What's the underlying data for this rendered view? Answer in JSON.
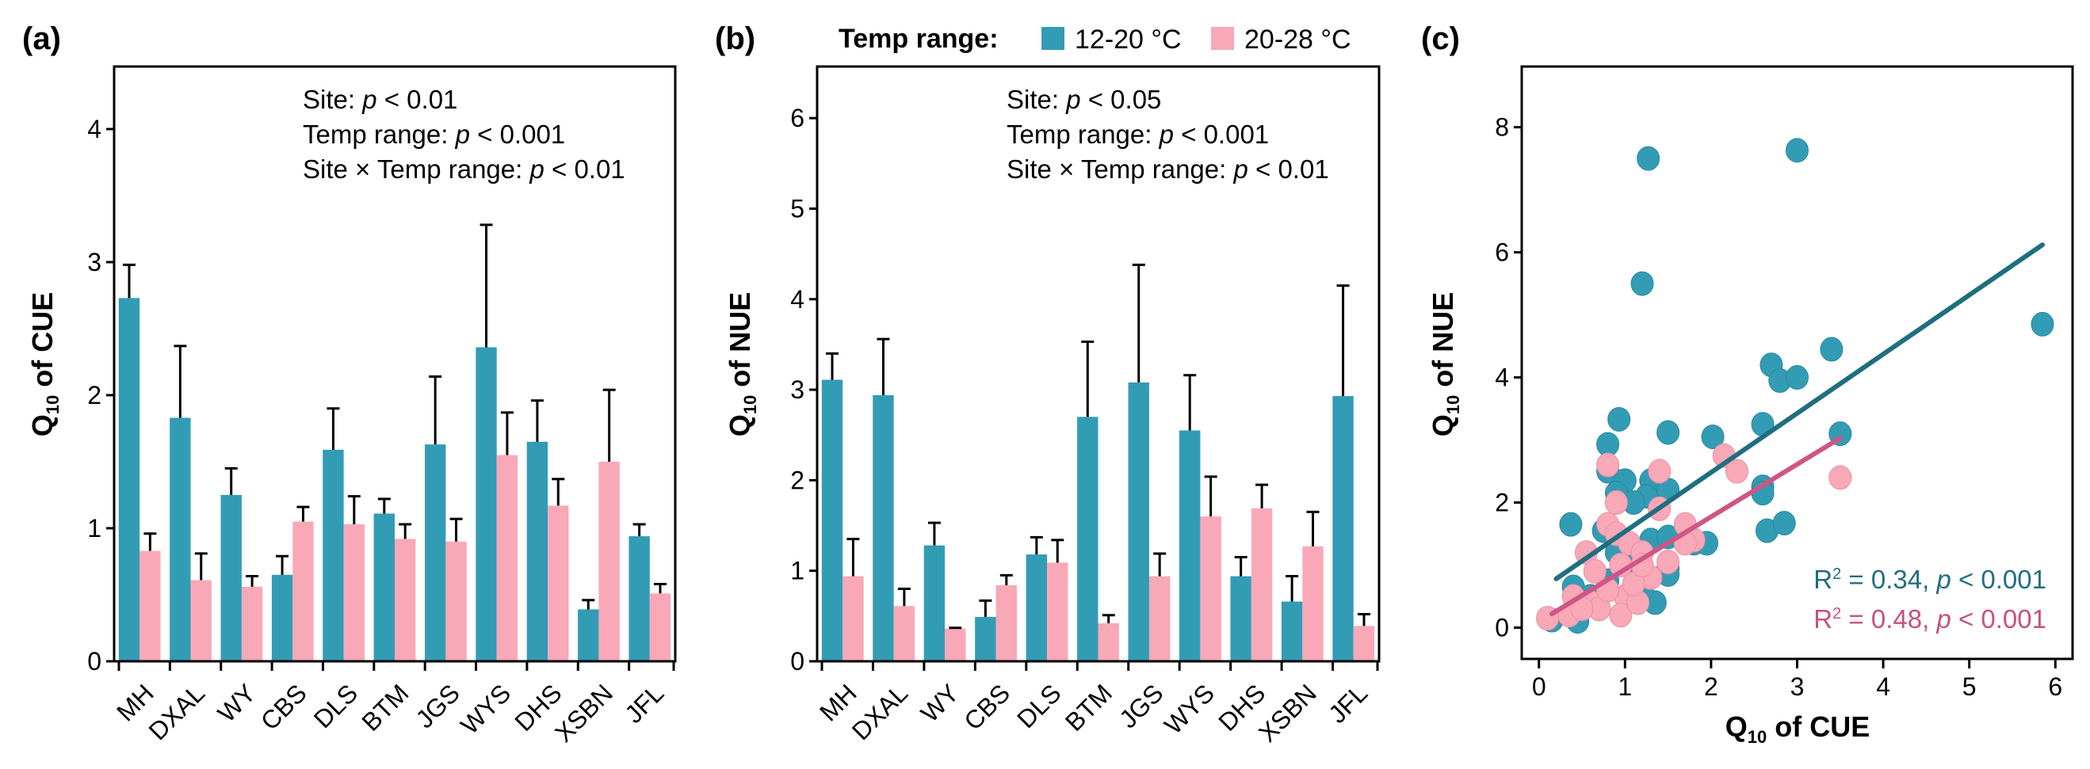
{
  "figure": {
    "panel_labels": [
      "(a)",
      "(b)",
      "(c)"
    ],
    "legend": {
      "title": "Temp range:",
      "items": [
        {
          "label": "12-20 °C",
          "color": "#339cb5"
        },
        {
          "label": "20-28 °C",
          "color": "#f9a8b8"
        }
      ]
    }
  },
  "chart_data": [
    {
      "id": "a",
      "type": "bar",
      "title": "",
      "xlabel": "",
      "ylabel": "Q10 of CUE",
      "ylabel_main": "Q",
      "ylabel_sub": "10",
      "ylabel_rest": " of CUE",
      "ylim": [
        0,
        4.47
      ],
      "yticks": [
        0,
        1,
        2,
        3,
        4
      ],
      "grid": false,
      "categories": [
        "MH",
        "DXAL",
        "WY",
        "CBS",
        "DLS",
        "BTM",
        "JGS",
        "WYS",
        "DHS",
        "XSBN",
        "JFL"
      ],
      "series": [
        {
          "name": "12-20 °C",
          "color": "#339cb5",
          "values": [
            2.73,
            1.83,
            1.25,
            0.65,
            1.59,
            1.11,
            1.63,
            2.36,
            1.65,
            0.39,
            0.94
          ],
          "error_upper": [
            2.98,
            2.37,
            1.45,
            0.79,
            1.9,
            1.22,
            2.14,
            3.28,
            1.96,
            0.46,
            1.03
          ]
        },
        {
          "name": "20-28 °C",
          "color": "#f9a8b8",
          "values": [
            0.83,
            0.61,
            0.56,
            1.05,
            1.03,
            0.92,
            0.9,
            1.55,
            1.17,
            1.5,
            0.51
          ],
          "error_upper": [
            0.96,
            0.81,
            0.64,
            1.16,
            1.24,
            1.03,
            1.07,
            1.87,
            1.37,
            2.04,
            0.58
          ]
        }
      ],
      "annotations": [
        {
          "prefix": "Site: ",
          "italic": "p",
          "suffix": " < 0.01"
        },
        {
          "prefix": "Temp range: ",
          "italic": "p",
          "suffix": " < 0.001"
        },
        {
          "prefix": "Site × Temp range: ",
          "italic": "p",
          "suffix": " < 0.01"
        }
      ]
    },
    {
      "id": "b",
      "type": "bar",
      "title": "",
      "xlabel": "",
      "ylabel": "Q10 of NUE",
      "ylabel_main": "Q",
      "ylabel_sub": "10",
      "ylabel_rest": " of NUE",
      "ylim": [
        0,
        6.57
      ],
      "yticks": [
        0,
        1,
        2,
        3,
        4,
        5,
        6
      ],
      "grid": false,
      "categories": [
        "MH",
        "DXAL",
        "WY",
        "CBS",
        "DLS",
        "BTM",
        "JGS",
        "WYS",
        "DHS",
        "XSBN",
        "JFL"
      ],
      "series": [
        {
          "name": "12-20 °C",
          "color": "#339cb5",
          "values": [
            3.11,
            2.94,
            1.28,
            0.49,
            1.18,
            2.7,
            3.08,
            2.55,
            0.94,
            0.66,
            2.93
          ],
          "error_upper": [
            3.4,
            3.56,
            1.53,
            0.67,
            1.37,
            3.53,
            4.38,
            3.16,
            1.15,
            0.94,
            4.15
          ]
        },
        {
          "name": "20-28 °C",
          "color": "#f9a8b8",
          "values": [
            0.94,
            0.61,
            0.36,
            0.84,
            1.09,
            0.42,
            0.94,
            1.6,
            1.69,
            1.27,
            0.39
          ],
          "error_upper": [
            1.35,
            0.8,
            0.37,
            0.95,
            1.34,
            0.51,
            1.19,
            2.04,
            1.95,
            1.65,
            0.52
          ]
        }
      ],
      "annotations": [
        {
          "prefix": "Site: ",
          "italic": "p",
          "suffix": " < 0.05"
        },
        {
          "prefix": "Temp range: ",
          "italic": "p",
          "suffix": " < 0.001"
        },
        {
          "prefix": "Site × Temp range: ",
          "italic": "p",
          "suffix": " < 0.01"
        }
      ]
    },
    {
      "id": "c",
      "type": "scatter",
      "title": "",
      "xlabel": "Q10 of CUE",
      "xlabel_main": "Q",
      "xlabel_sub": "10",
      "xlabel_rest": " of CUE",
      "ylabel": "Q10 of NUE",
      "ylabel_main": "Q",
      "ylabel_sub": "10",
      "ylabel_rest": " of NUE",
      "xlim": [
        -0.2,
        6.2
      ],
      "ylim": [
        -0.5,
        8.97
      ],
      "xticks": [
        0,
        1,
        2,
        3,
        4,
        5,
        6
      ],
      "yticks": [
        0,
        2,
        4,
        6,
        8
      ],
      "grid": false,
      "series": [
        {
          "name": "12-20 °C",
          "color": "#339cb5",
          "line_color": "#1f6e80",
          "points": [
            [
              1.27,
              7.5
            ],
            [
              3.0,
              7.63
            ],
            [
              1.2,
              5.5
            ],
            [
              5.85,
              4.85
            ],
            [
              3.4,
              4.45
            ],
            [
              2.7,
              4.2
            ],
            [
              2.8,
              3.95
            ],
            [
              3.0,
              4.0
            ],
            [
              0.93,
              3.33
            ],
            [
              1.5,
              3.12
            ],
            [
              2.02,
              3.05
            ],
            [
              2.6,
              3.25
            ],
            [
              3.5,
              3.1
            ],
            [
              0.8,
              2.93
            ],
            [
              0.8,
              2.5
            ],
            [
              1.0,
              2.35
            ],
            [
              1.3,
              2.35
            ],
            [
              1.5,
              2.2
            ],
            [
              1.25,
              2.1
            ],
            [
              1.1,
              2.0
            ],
            [
              0.9,
              2.15
            ],
            [
              2.6,
              2.25
            ],
            [
              2.6,
              2.15
            ],
            [
              0.37,
              1.65
            ],
            [
              2.65,
              1.55
            ],
            [
              2.85,
              1.67
            ],
            [
              0.75,
              1.55
            ],
            [
              1.3,
              1.4
            ],
            [
              1.5,
              1.45
            ],
            [
              1.8,
              1.35
            ],
            [
              1.95,
              1.35
            ],
            [
              1.0,
              1.05
            ],
            [
              1.15,
              0.9
            ],
            [
              1.5,
              0.95
            ],
            [
              1.5,
              0.85
            ],
            [
              0.4,
              0.65
            ],
            [
              0.8,
              0.75
            ],
            [
              1.35,
              0.4
            ],
            [
              0.15,
              0.12
            ],
            [
              0.45,
              0.1
            ],
            [
              0.7,
              0.3
            ],
            [
              1.2,
              0.6
            ],
            [
              0.6,
              0.5
            ],
            [
              0.9,
              1.2
            ]
          ],
          "fit": {
            "x": [
              0.2,
              5.85
            ],
            "y": [
              0.78,
              6.12
            ]
          },
          "stat_text": {
            "r2_label": "R",
            "r2_sup": "2",
            "r2_value": " = 0.34, ",
            "p_italic": "p",
            "p_rest": " < 0.001"
          }
        },
        {
          "name": "20-28 °C",
          "color": "#f9a8b8",
          "line_color": "#cf5584",
          "points": [
            [
              0.8,
              2.6
            ],
            [
              1.4,
              2.5
            ],
            [
              2.15,
              2.75
            ],
            [
              2.3,
              2.5
            ],
            [
              3.5,
              2.4
            ],
            [
              0.9,
              2.0
            ],
            [
              1.4,
              1.9
            ],
            [
              0.8,
              1.65
            ],
            [
              0.9,
              1.5
            ],
            [
              1.7,
              1.65
            ],
            [
              1.8,
              1.4
            ],
            [
              1.7,
              1.35
            ],
            [
              0.55,
              1.2
            ],
            [
              1.05,
              1.35
            ],
            [
              1.5,
              1.05
            ],
            [
              0.65,
              0.9
            ],
            [
              1.2,
              1.2
            ],
            [
              0.95,
              1.0
            ],
            [
              1.0,
              0.5
            ],
            [
              0.6,
              0.4
            ],
            [
              0.4,
              0.5
            ],
            [
              0.1,
              0.15
            ],
            [
              0.35,
              0.2
            ],
            [
              0.95,
              0.2
            ],
            [
              1.15,
              0.4
            ],
            [
              0.7,
              0.3
            ],
            [
              1.3,
              0.8
            ],
            [
              0.5,
              0.3
            ],
            [
              1.1,
              0.7
            ],
            [
              0.8,
              0.6
            ],
            [
              1.2,
              1.0
            ]
          ],
          "fit": {
            "x": [
              0.15,
              3.5
            ],
            "y": [
              0.22,
              3.03
            ]
          },
          "stat_text": {
            "r2_label": "R",
            "r2_sup": "2",
            "r2_value": " = 0.48, ",
            "p_italic": "p",
            "p_rest": " < 0.001"
          }
        }
      ],
      "legend": "bottom-right"
    }
  ]
}
